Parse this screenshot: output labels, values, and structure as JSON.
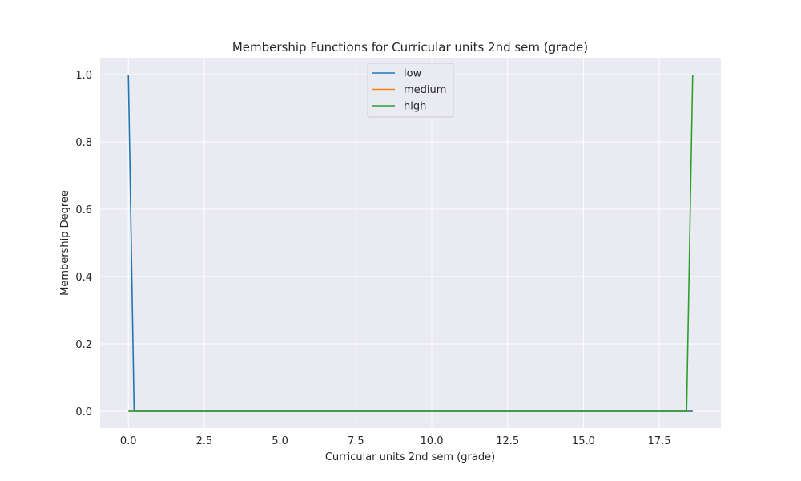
{
  "chart_data": {
    "type": "line",
    "title": "Membership Functions for Curricular units 2nd sem (grade)",
    "xlabel": "Curricular units 2nd sem (grade)",
    "ylabel": "Membership Degree",
    "xlim": [
      -0.93,
      19.53
    ],
    "ylim": [
      -0.05,
      1.05
    ],
    "xticks": [
      0.0,
      2.5,
      5.0,
      7.5,
      10.0,
      12.5,
      15.0,
      17.5
    ],
    "xtick_labels": [
      "0.0",
      "2.5",
      "5.0",
      "7.5",
      "10.0",
      "12.5",
      "15.0",
      "17.5"
    ],
    "yticks": [
      0.0,
      0.2,
      0.4,
      0.6,
      0.8,
      1.0
    ],
    "ytick_labels": [
      "0.0",
      "0.2",
      "0.4",
      "0.6",
      "0.8",
      "1.0"
    ],
    "grid": true,
    "legend_position": "top-center",
    "series": [
      {
        "name": "low",
        "color": "#1f77b4",
        "x": [
          0.0,
          0.19,
          18.6
        ],
        "y": [
          1.0,
          0.0,
          0.0
        ]
      },
      {
        "name": "medium",
        "color": "#ff7f0e",
        "x": [
          0.0,
          18.6
        ],
        "y": [
          0.0,
          0.0
        ]
      },
      {
        "name": "high",
        "color": "#2ca02c",
        "x": [
          0.0,
          18.4,
          18.6
        ],
        "y": [
          0.0,
          0.0,
          1.0
        ]
      }
    ]
  }
}
